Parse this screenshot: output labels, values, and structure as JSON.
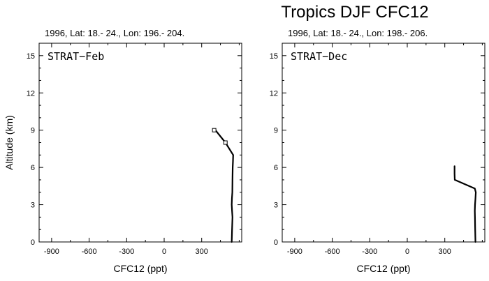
{
  "figure_title": "Tropics DJF CFC12",
  "chart_data": [
    {
      "type": "line",
      "subtitle": "1996, Lat: 18.- 24., Lon: 196.- 204.",
      "panel_label": "STRAT−Feb",
      "xlabel": "CFC12 (ppt)",
      "ylabel": "Altitude (km)",
      "xlim": [
        -1000,
        620
      ],
      "ylim": [
        0,
        16
      ],
      "xticks": [
        -900,
        -600,
        -300,
        0,
        300
      ],
      "xtick_labels": [
        "-900",
        "-600",
        "-300",
        "0",
        "300"
      ],
      "yticks": [
        0,
        3,
        6,
        9,
        12,
        15
      ],
      "ytick_labels": [
        "0",
        "3",
        "6",
        "9",
        "12",
        "15"
      ],
      "series": [
        {
          "x": [
            540,
            543,
            546,
            543,
            540,
            542,
            545,
            546,
            548,
            550,
            552,
            490,
            410
          ],
          "y": [
            0,
            1,
            2,
            2.5,
            3,
            3.5,
            4,
            5,
            6,
            6.5,
            7,
            8,
            9
          ]
        }
      ],
      "markers": [
        {
          "x": 400,
          "y": 9
        },
        {
          "x": 490,
          "y": 8
        }
      ]
    },
    {
      "type": "line",
      "subtitle": "1996, Lat: 18.- 24., Lon: 198.- 206.",
      "panel_label": "STRAT−Dec",
      "xlabel": "CFC12 (ppt)",
      "ylabel": "",
      "xlim": [
        -1000,
        620
      ],
      "ylim": [
        0,
        16
      ],
      "xticks": [
        -900,
        -600,
        -300,
        0,
        300
      ],
      "xtick_labels": [
        "-900",
        "-600",
        "-300",
        "0",
        "300"
      ],
      "yticks": [
        0,
        3,
        6,
        9,
        12,
        15
      ],
      "ytick_labels": [
        "0",
        "3",
        "6",
        "9",
        "12",
        "15"
      ],
      "series": [
        {
          "x": [
            545,
            543,
            541,
            540,
            542,
            545,
            548,
            540,
            380,
            378,
            378
          ],
          "y": [
            0,
            1,
            2,
            2.5,
            3,
            3.5,
            4,
            4.3,
            5,
            5.5,
            6.1
          ]
        }
      ],
      "markers": []
    }
  ]
}
